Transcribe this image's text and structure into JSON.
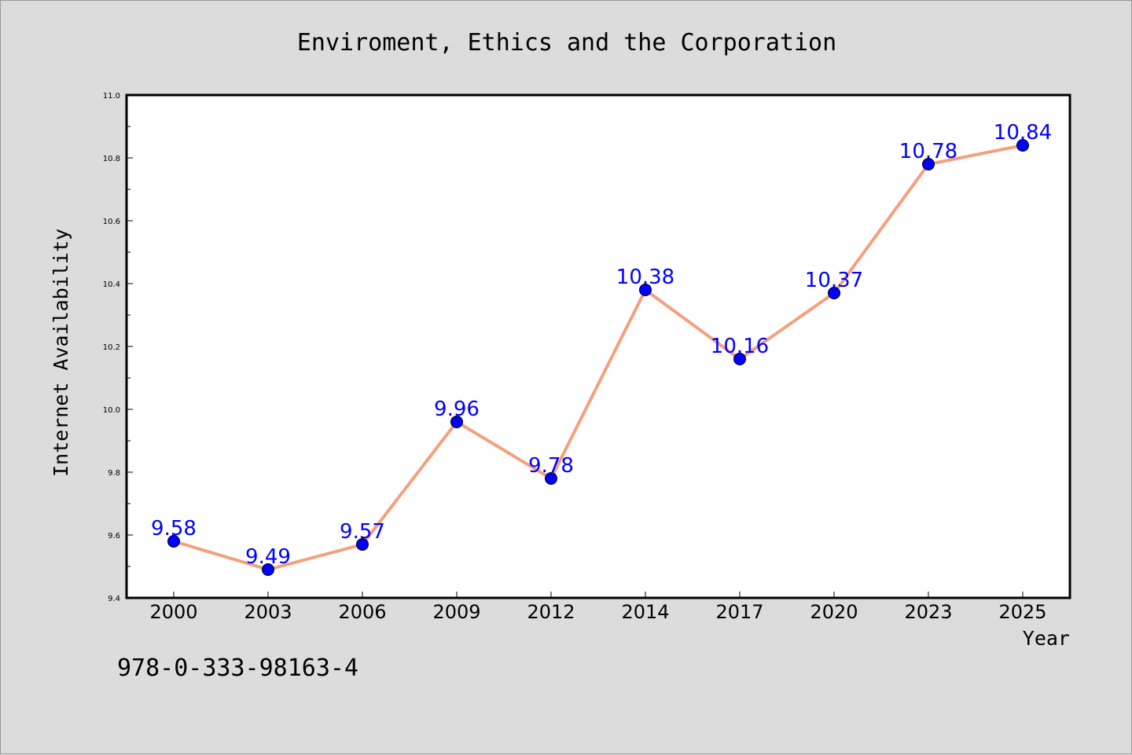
{
  "chart_data": {
    "type": "line",
    "title": "Enviroment, Ethics and the Corporation",
    "xlabel": "Year",
    "ylabel": "Internet Availability",
    "categories": [
      "2000",
      "2003",
      "2006",
      "2009",
      "2012",
      "2014",
      "2017",
      "2020",
      "2023",
      "2025"
    ],
    "series": [
      {
        "values": [
          9.58,
          9.49,
          9.57,
          9.96,
          9.78,
          10.38,
          10.16,
          10.37,
          10.78,
          10.84
        ],
        "line_color": "#f4a07e",
        "marker_color": "#0000ff",
        "label_color": "#0000ff"
      }
    ],
    "ylim": [
      9.4,
      11.0
    ],
    "yticks": [
      "9.4",
      "9.6",
      "9.8",
      "10.0",
      "10.2",
      "10.4",
      "10.6",
      "10.8",
      "11.0"
    ],
    "data_labels": [
      "9.58",
      "9.49",
      "9.57",
      "9.96",
      "9.78",
      "10.38",
      "10.16",
      "10.37",
      "10.78",
      "10.84"
    ],
    "grid": false,
    "legend": "none"
  },
  "footer_code": "978-0-333-98163-4"
}
